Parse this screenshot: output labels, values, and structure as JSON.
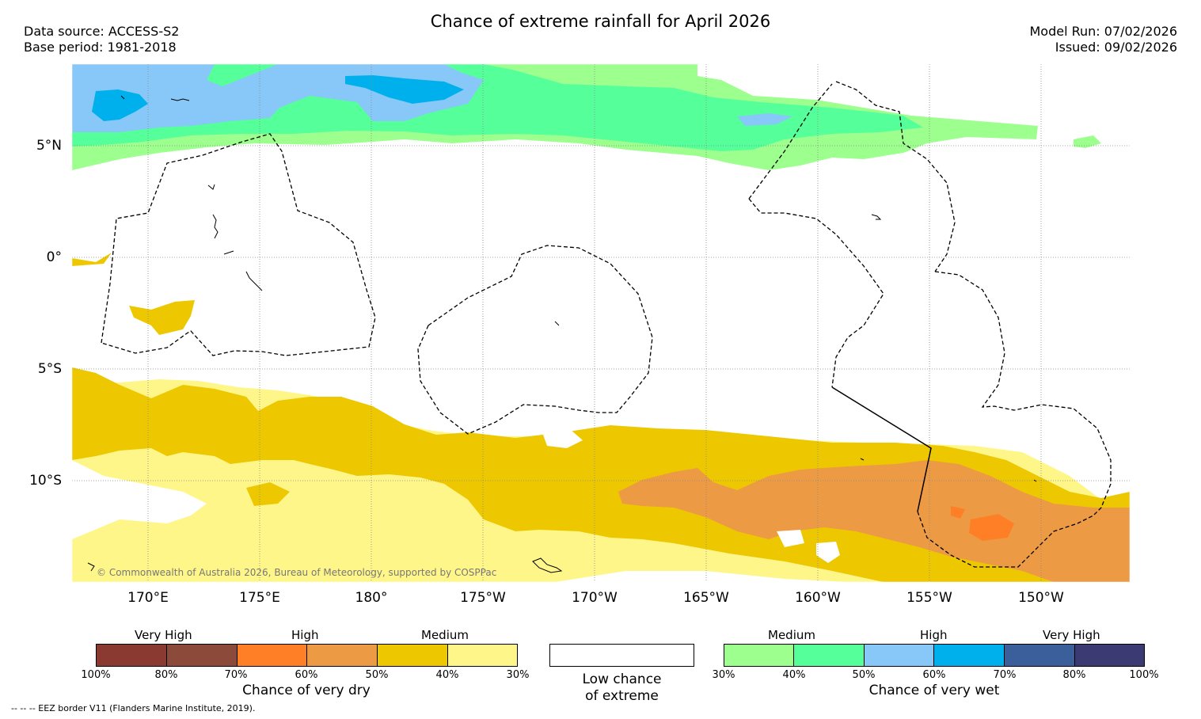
{
  "title": "Chance of extreme rainfall for April 2026",
  "meta": {
    "data_source": "Data source: ACCESS-S2",
    "base_period": "Base period: 1981-2018",
    "model_run": "Model Run: 07/02/2026",
    "issued": "Issued: 09/02/2026"
  },
  "map": {
    "latitude_labels": [
      "5°N",
      "0°",
      "5°S",
      "10°S"
    ],
    "longitude_labels": [
      "170°E",
      "175°E",
      "180°",
      "175°W",
      "170°W",
      "165°W",
      "160°W",
      "155°W",
      "150°W"
    ],
    "copyright": "© Commonwealth of Australia 2026, Bureau of Meteorology, supported by COSPPac"
  },
  "legend_dry": {
    "categories": [
      "Very High",
      "High",
      "Medium"
    ],
    "percent_labels": [
      "100%",
      "80%",
      "70%",
      "60%",
      "50%",
      "40%",
      "30%"
    ],
    "colors": [
      "#8b3a32",
      "#8b4a3a",
      "#ff7f27",
      "#ed9a45",
      "#edc800",
      "#fff68a"
    ],
    "title": "Chance of very dry"
  },
  "legend_low": {
    "line1": "Low chance",
    "line2": "of extreme",
    "color": "#ffffff"
  },
  "legend_wet": {
    "categories": [
      "Medium",
      "High",
      "Very High"
    ],
    "percent_labels": [
      "30%",
      "40%",
      "50%",
      "60%",
      "70%",
      "80%",
      "100%"
    ],
    "colors": [
      "#9cff8e",
      "#55ff99",
      "#87c8f8",
      "#00b0ec",
      "#3a5f9a",
      "#3c3a72"
    ],
    "title": "Chance of very wet"
  },
  "footnote": "-- -- -- EEZ border V11 (Flanders Marine Institute, 2019)."
}
